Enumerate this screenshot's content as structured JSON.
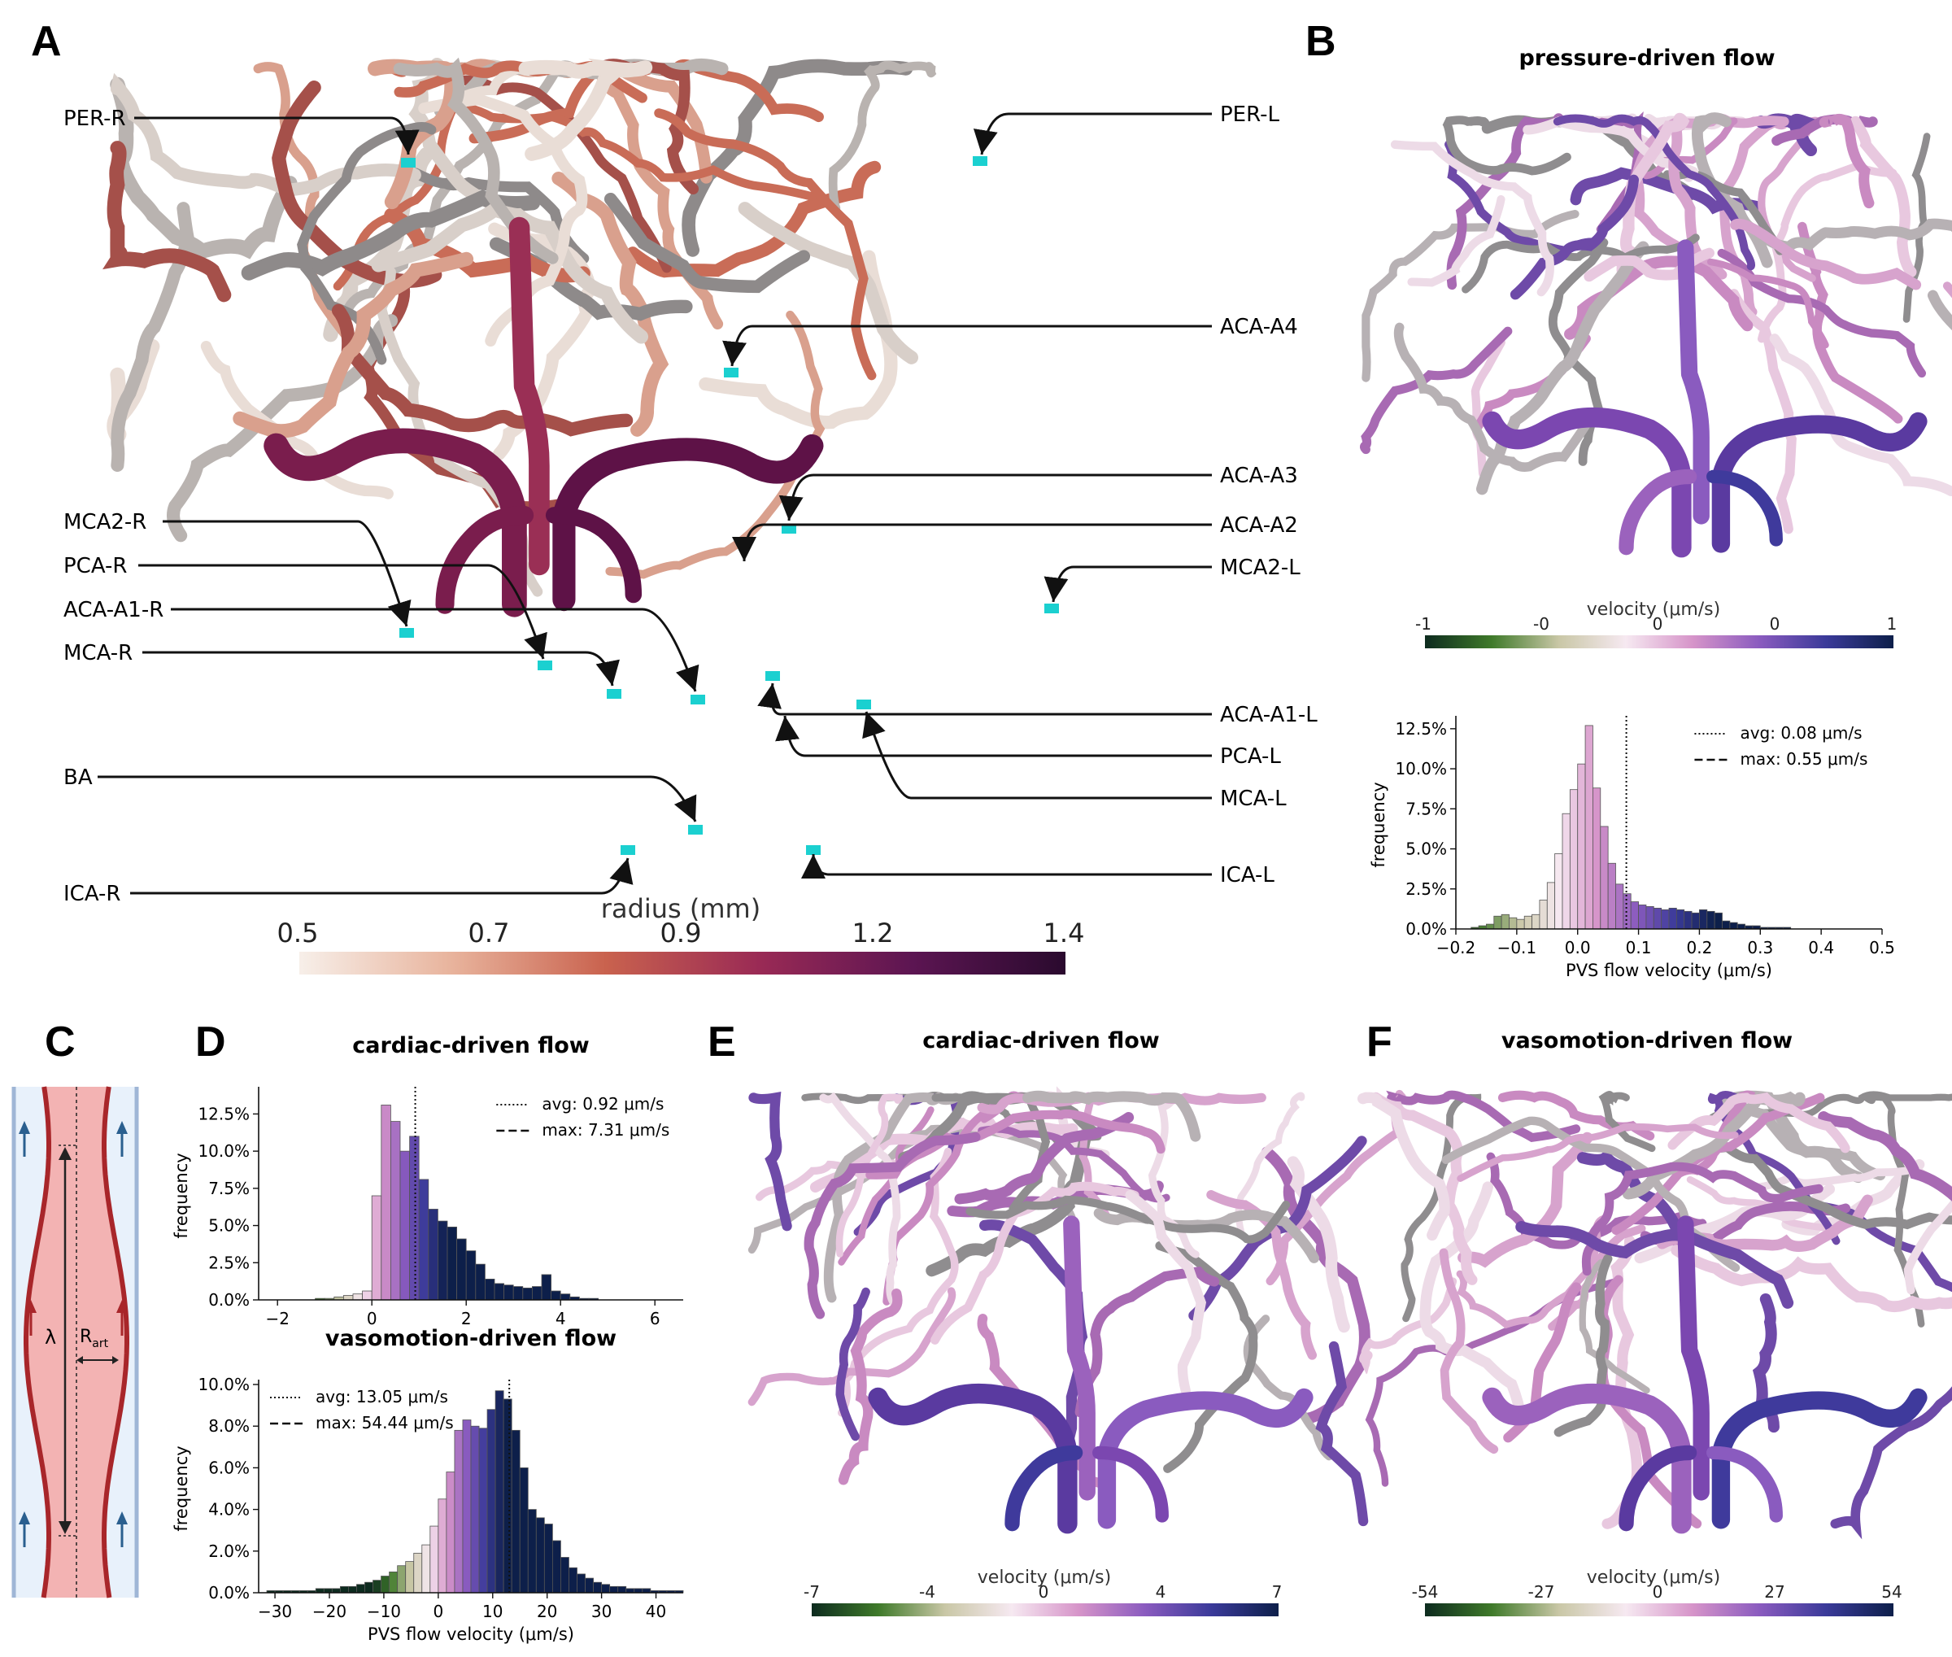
{
  "panels": {
    "A": "A",
    "B": "B",
    "C": "C",
    "D": "D",
    "E": "E",
    "F": "F"
  },
  "panelA": {
    "labels_left": [
      "PER-R",
      "MCA2-R",
      "PCA-R",
      "ACA-A1-R",
      "MCA-R",
      "BA",
      "ICA-R"
    ],
    "labels_right": [
      "PER-L",
      "ACA-A4",
      "ACA-A3",
      "ACA-A2",
      "MCA2-L",
      "ACA-A1-L",
      "PCA-L",
      "MCA-L",
      "ICA-L"
    ],
    "colorbar": {
      "title": "radius (mm)",
      "ticks": [
        "0.5",
        "0.7",
        "0.9",
        "1.2",
        "1.4"
      ],
      "colors": [
        "#f7efe9",
        "#e8b39c",
        "#c9624e",
        "#9a2a55",
        "#5c1552",
        "#2a0a2e"
      ]
    },
    "vessel_colors": [
      "#e9ddd6",
      "#d9a08d",
      "#c96c57",
      "#b9b3b0",
      "#8e8a8a",
      "#d8cfc9",
      "#a5504a"
    ],
    "trunk_colors": [
      "#7a1d4d",
      "#5e1247",
      "#9a2f55"
    ],
    "marker_color": "#1bd0d0"
  },
  "panelB": {
    "title": "pressure-driven flow",
    "colorbar": {
      "title": "velocity (μm/s)",
      "ticks": [
        "-1",
        "-0",
        "0",
        "0",
        "1"
      ]
    }
  },
  "panelE": {
    "title": "cardiac-driven flow",
    "colorbar": {
      "title": "velocity (μm/s)",
      "ticks": [
        "-7",
        "-4",
        "0",
        "4",
        "7"
      ]
    }
  },
  "panelF": {
    "title": "vasomotion-driven flow",
    "colorbar": {
      "title": "velocity (μm/s)",
      "ticks": [
        "-54",
        "-27",
        "0",
        "27",
        "54"
      ]
    }
  },
  "velocity_colormap": [
    "#0d2b1f",
    "#3f7a2a",
    "#c9c7a6",
    "#f6e9f1",
    "#d694c9",
    "#8a5bbf",
    "#3a3a99",
    "#0d1f4a"
  ],
  "panelC": {
    "lambda": "λ",
    "rart": "R",
    "rart_sub": "art"
  },
  "chart_data": [
    {
      "id": "hist_pressure",
      "type": "bar",
      "title": "",
      "xlabel": "PVS flow velocity (μm/s)",
      "ylabel": "frequency",
      "xlim": [
        -0.2,
        0.5
      ],
      "ylim": [
        0,
        0.13
      ],
      "xticks": [
        "−0.2",
        "−0.1",
        "0.0",
        "0.1",
        "0.2",
        "0.3",
        "0.4",
        "0.5"
      ],
      "xtick_values": [
        -0.2,
        -0.1,
        0.0,
        0.1,
        0.2,
        0.3,
        0.4,
        0.5
      ],
      "yticks": [
        "0.0%",
        "2.5%",
        "5.0%",
        "7.5%",
        "10.0%",
        "12.5%"
      ],
      "ytick_values": [
        0,
        0.025,
        0.05,
        0.075,
        0.1,
        0.125
      ],
      "bin_width": 0.0125,
      "bin_start": -0.175,
      "values": [
        0.001,
        0.002,
        0.003,
        0.008,
        0.009,
        0.007,
        0.006,
        0.008,
        0.009,
        0.018,
        0.029,
        0.047,
        0.072,
        0.087,
        0.103,
        0.127,
        0.088,
        0.064,
        0.041,
        0.028,
        0.022,
        0.017,
        0.015,
        0.014,
        0.013,
        0.012,
        0.013,
        0.012,
        0.011,
        0.01,
        0.012,
        0.011,
        0.01,
        0.005,
        0.004,
        0.003,
        0.002,
        0.002,
        0.001,
        0.001,
        0.001,
        0.001
      ],
      "avg": 0.08,
      "max": 0.55,
      "legend": [
        "avg: 0.08 μm/s",
        "max: 0.55 μm/s"
      ],
      "legend_position": "top-right",
      "cmin": -1,
      "cmax": 1
    },
    {
      "id": "hist_cardiac",
      "type": "bar",
      "title": "cardiac-driven flow",
      "xlabel": "",
      "ylabel": "frequency",
      "xlim": [
        -2.4,
        6.6
      ],
      "ylim": [
        0,
        0.14
      ],
      "xticks": [
        "−2",
        "0",
        "2",
        "4",
        "6"
      ],
      "xtick_values": [
        -2,
        0,
        2,
        4,
        6
      ],
      "yticks": [
        "0.0%",
        "2.5%",
        "5.0%",
        "7.5%",
        "10.0%",
        "12.5%"
      ],
      "ytick_values": [
        0,
        0.025,
        0.05,
        0.075,
        0.1,
        0.125
      ],
      "bin_width": 0.2,
      "bin_start": -1.2,
      "values": [
        0.001,
        0.001,
        0.002,
        0.003,
        0.004,
        0.006,
        0.07,
        0.131,
        0.12,
        0.1,
        0.11,
        0.081,
        0.061,
        0.053,
        0.049,
        0.041,
        0.033,
        0.024,
        0.014,
        0.011,
        0.01,
        0.009,
        0.008,
        0.009,
        0.017,
        0.006,
        0.004,
        0.002,
        0.001,
        0.001
      ],
      "avg": 0.92,
      "max": 7.31,
      "legend": [
        "avg: 0.92 μm/s",
        "max: 7.31 μm/s"
      ],
      "legend_position": "top-right",
      "cmin": -7,
      "cmax": 7
    },
    {
      "id": "hist_vasomotion",
      "type": "bar",
      "title": "vasomotion-driven flow",
      "xlabel": "PVS flow velocity (μm/s)",
      "ylabel": "frequency",
      "xlim": [
        -33,
        45
      ],
      "ylim": [
        0,
        0.1
      ],
      "xticks": [
        "−30",
        "−20",
        "−10",
        "0",
        "10",
        "20",
        "30",
        "40"
      ],
      "xtick_values": [
        -30,
        -20,
        -10,
        0,
        10,
        20,
        30,
        40
      ],
      "yticks": [
        "0.0%",
        "2.0%",
        "4.0%",
        "6.0%",
        "8.0%",
        "10.0%"
      ],
      "ytick_values": [
        0,
        0.02,
        0.04,
        0.06,
        0.08,
        0.1
      ],
      "bin_width": 1.5,
      "bin_start": -31.5,
      "values": [
        0.001,
        0.001,
        0.001,
        0.001,
        0.001,
        0.001,
        0.002,
        0.002,
        0.002,
        0.003,
        0.003,
        0.004,
        0.005,
        0.006,
        0.008,
        0.01,
        0.013,
        0.015,
        0.019,
        0.023,
        0.032,
        0.045,
        0.058,
        0.078,
        0.083,
        0.08,
        0.079,
        0.088,
        0.097,
        0.093,
        0.078,
        0.06,
        0.04,
        0.036,
        0.033,
        0.025,
        0.017,
        0.012,
        0.009,
        0.007,
        0.005,
        0.004,
        0.003,
        0.003,
        0.002,
        0.002,
        0.002,
        0.001,
        0.001,
        0.001,
        0.001
      ],
      "avg": 13.05,
      "max": 54.44,
      "legend": [
        "avg: 13.05 μm/s",
        "max: 54.44 μm/s"
      ],
      "legend_position": "top-left",
      "cmin": -54,
      "cmax": 54
    }
  ]
}
